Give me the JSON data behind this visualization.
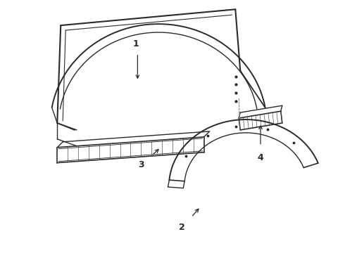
{
  "background_color": "#ffffff",
  "line_color": "#2a2a2a",
  "line_color_light": "#555555",
  "line_width": 1.1,
  "label_fontsize": 9,
  "figsize": [
    4.9,
    3.6
  ],
  "dpi": 100
}
